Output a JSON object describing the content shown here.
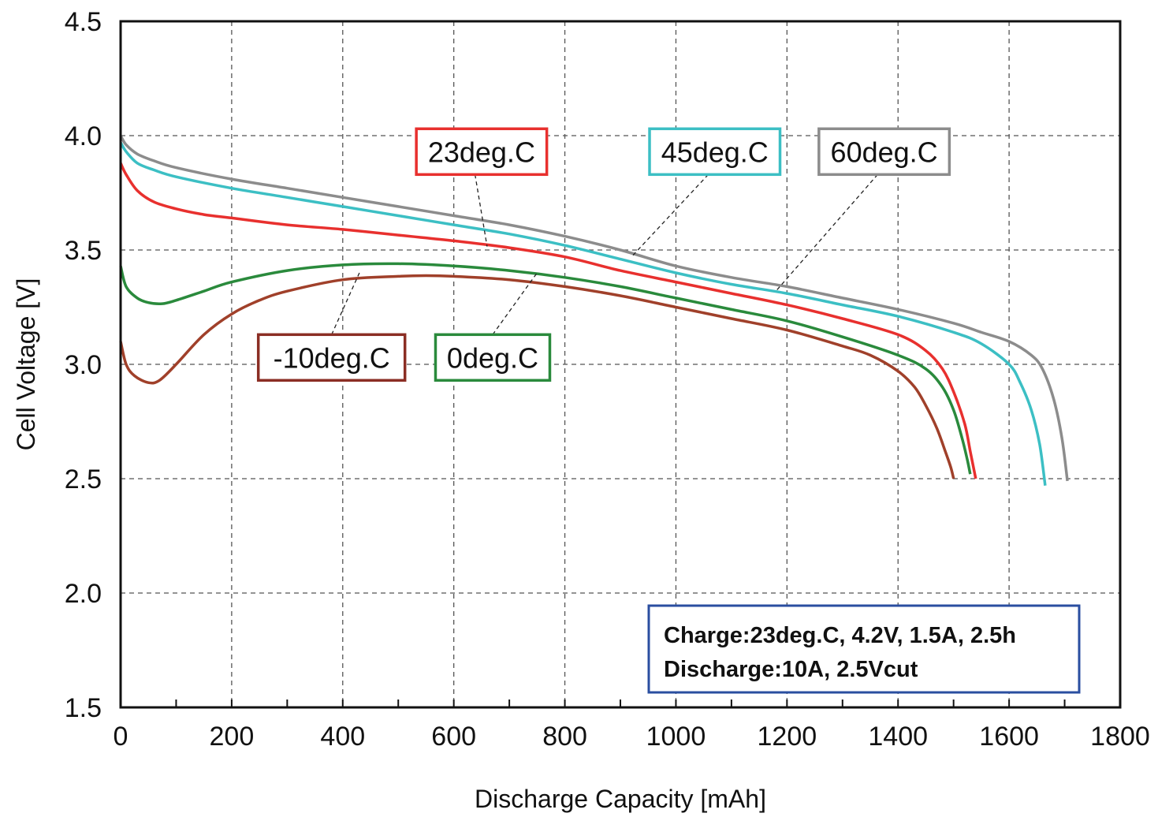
{
  "chart_data": {
    "type": "line",
    "xlabel": "Discharge Capacity [mAh]",
    "ylabel": "Cell Voltage [V]",
    "xlim": [
      0,
      1800
    ],
    "ylim": [
      1.5,
      4.5
    ],
    "x_ticks": [
      0,
      200,
      400,
      600,
      800,
      1000,
      1200,
      1400,
      1600,
      1800
    ],
    "y_ticks": [
      "1.5",
      "2.0",
      "2.5",
      "3.0",
      "3.5",
      "4.0",
      "4.5"
    ],
    "x_tick_labels": [
      "0",
      "200",
      "400",
      "600",
      "800",
      "1000",
      "1200",
      "1400",
      "1600",
      "1800"
    ],
    "grid": true,
    "series": [
      {
        "name": "-10deg.C",
        "color": "#a0402a",
        "x": [
          0,
          10,
          25,
          50,
          70,
          100,
          150,
          200,
          250,
          300,
          400,
          500,
          550,
          600,
          700,
          800,
          900,
          1000,
          1100,
          1200,
          1300,
          1350,
          1400,
          1430,
          1450,
          1470,
          1485,
          1495,
          1500
        ],
        "y": [
          3.1,
          3.0,
          2.95,
          2.92,
          2.93,
          3.0,
          3.13,
          3.22,
          3.28,
          3.32,
          3.37,
          3.385,
          3.388,
          3.385,
          3.37,
          3.34,
          3.3,
          3.25,
          3.2,
          3.15,
          3.08,
          3.04,
          2.97,
          2.9,
          2.82,
          2.72,
          2.62,
          2.55,
          2.5
        ]
      },
      {
        "name": "0deg.C",
        "color": "#2a8a3c",
        "x": [
          0,
          10,
          30,
          50,
          75,
          100,
          150,
          200,
          300,
          400,
          500,
          600,
          700,
          800,
          900,
          1000,
          1100,
          1200,
          1300,
          1400,
          1450,
          1480,
          1500,
          1515,
          1525,
          1530
        ],
        "y": [
          3.43,
          3.34,
          3.29,
          3.27,
          3.265,
          3.28,
          3.32,
          3.36,
          3.41,
          3.435,
          3.44,
          3.43,
          3.41,
          3.38,
          3.34,
          3.29,
          3.24,
          3.19,
          3.12,
          3.04,
          2.98,
          2.9,
          2.8,
          2.68,
          2.58,
          2.52
        ]
      },
      {
        "name": "23deg.C",
        "color": "#e8302e",
        "x": [
          0,
          10,
          30,
          60,
          100,
          150,
          200,
          300,
          400,
          500,
          600,
          700,
          800,
          900,
          1000,
          1100,
          1200,
          1300,
          1400,
          1450,
          1480,
          1500,
          1520,
          1530,
          1540
        ],
        "y": [
          3.88,
          3.83,
          3.76,
          3.71,
          3.68,
          3.655,
          3.64,
          3.61,
          3.59,
          3.565,
          3.54,
          3.51,
          3.47,
          3.41,
          3.36,
          3.31,
          3.26,
          3.2,
          3.13,
          3.06,
          2.98,
          2.88,
          2.74,
          2.62,
          2.5
        ]
      },
      {
        "name": "45deg.C",
        "color": "#3cbfc4",
        "x": [
          0,
          10,
          30,
          60,
          100,
          200,
          300,
          400,
          500,
          600,
          700,
          800,
          900,
          1000,
          1100,
          1200,
          1300,
          1400,
          1500,
          1550,
          1600,
          1620,
          1640,
          1655,
          1665
        ],
        "y": [
          3.97,
          3.93,
          3.88,
          3.85,
          3.82,
          3.77,
          3.73,
          3.69,
          3.65,
          3.61,
          3.57,
          3.52,
          3.46,
          3.4,
          3.35,
          3.31,
          3.26,
          3.21,
          3.14,
          3.09,
          3.0,
          2.92,
          2.8,
          2.65,
          2.47
        ]
      },
      {
        "name": "60deg.C",
        "color": "#8c8c8c",
        "x": [
          0,
          10,
          30,
          60,
          100,
          200,
          300,
          400,
          500,
          600,
          700,
          800,
          900,
          1000,
          1100,
          1200,
          1300,
          1400,
          1500,
          1550,
          1600,
          1640,
          1660,
          1680,
          1695,
          1705
        ],
        "y": [
          4.0,
          3.96,
          3.92,
          3.89,
          3.86,
          3.81,
          3.77,
          3.73,
          3.69,
          3.65,
          3.61,
          3.56,
          3.5,
          3.43,
          3.38,
          3.34,
          3.29,
          3.24,
          3.18,
          3.14,
          3.1,
          3.04,
          2.98,
          2.85,
          2.68,
          2.49
        ]
      }
    ],
    "annotations": [
      {
        "text": "23deg.C",
        "color": "#e8302e",
        "box_x": 650,
        "box_y": 3.93,
        "point_x": 660,
        "point_y": 3.515
      },
      {
        "text": "45deg.C",
        "color": "#3cbfc4",
        "box_x": 1070,
        "box_y": 3.93,
        "point_x": 920,
        "point_y": 3.47
      },
      {
        "text": "60deg.C",
        "color": "#8c8c8c",
        "box_x": 1375,
        "box_y": 3.93,
        "point_x": 1180,
        "point_y": 3.32
      },
      {
        "text": "-10deg.C",
        "color": "#8b2e24",
        "box_x": 380,
        "box_y": 3.03,
        "point_x": 430,
        "point_y": 3.4
      },
      {
        "text": "0deg.C",
        "color": "#2a8a3c",
        "box_x": 670,
        "box_y": 3.03,
        "point_x": 750,
        "point_y": 3.4
      }
    ],
    "conditions_box": {
      "border_color": "#2a4ea0",
      "lines": [
        "Charge:23deg.C, 4.2V, 1.5A, 2.5h",
        "Discharge:10A, 2.5Vcut"
      ]
    }
  }
}
